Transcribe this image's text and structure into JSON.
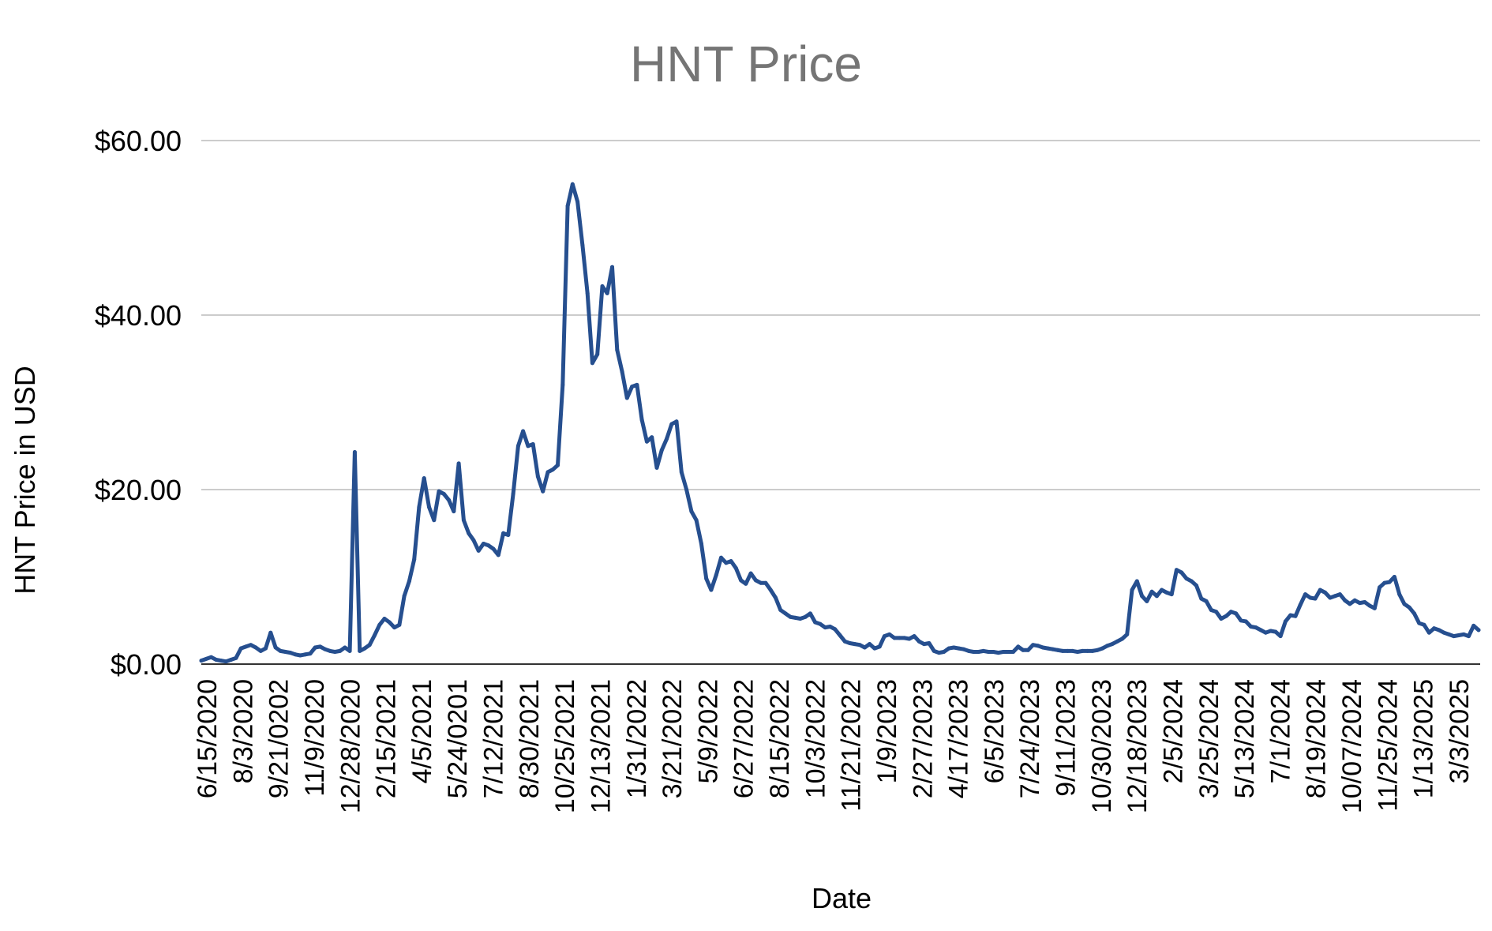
{
  "chart_data": {
    "type": "line",
    "title": "HNT Price",
    "xlabel": "Date",
    "ylabel": "HNT Price in USD",
    "ylim": [
      0,
      60
    ],
    "y_ticks": [
      {
        "value": 0,
        "label": "$0.00"
      },
      {
        "value": 20,
        "label": "$20.00"
      },
      {
        "value": 40,
        "label": "$40.00"
      },
      {
        "value": 60,
        "label": "$60.00"
      }
    ],
    "x_tick_labels": [
      "6/15/2020",
      "8/3/2020",
      "9/21/0202",
      "11/9/2020",
      "12/28/2020",
      "2/15/2021",
      "4/5/2021",
      "5/24/0201",
      "7/12/2021",
      "8/30/2021",
      "10/25/2021",
      "12/13/2021",
      "1/31/2022",
      "3/21/2022",
      "5/9/2022",
      "6/27/2022",
      "8/15/2022",
      "10/3/2022",
      "11/21/2022",
      "1/9/2023",
      "2/27/2023",
      "4/17/2023",
      "6/5/2023",
      "7/24/2023",
      "9/11/2023",
      "10/30/2023",
      "12/18/2023",
      "2/5/2024",
      "3/25/2024",
      "5/13/2024",
      "7/1/2024",
      "8/19/2024",
      "10/07/2024",
      "11/25/2024",
      "1/13/2025",
      "3/3/2025"
    ],
    "grid": true,
    "legend": "none",
    "colors": {
      "series": "#264f8f",
      "title": "#757575",
      "grid": "#cccccc"
    },
    "series": [
      {
        "values": [
          0.4,
          0.6,
          0.8,
          0.5,
          0.4,
          0.3,
          0.5,
          0.7,
          1.8,
          2.0,
          2.2,
          1.9,
          1.5,
          1.8,
          3.6,
          1.9,
          1.5,
          1.4,
          1.3,
          1.1,
          1.0,
          1.1,
          1.2,
          1.9,
          2.0,
          1.7,
          1.5,
          1.4,
          1.5,
          1.9,
          1.5,
          24.3,
          1.5,
          1.8,
          2.2,
          3.3,
          4.5,
          5.2,
          4.8,
          4.2,
          4.5,
          7.8,
          9.5,
          12.0,
          18.0,
          21.3,
          18.0,
          16.5,
          19.8,
          19.5,
          18.8,
          17.5,
          23.0,
          16.5,
          15.0,
          14.2,
          13.0,
          13.8,
          13.6,
          13.2,
          12.5,
          15.0,
          14.8,
          19.5,
          25.0,
          26.7,
          25.0,
          25.2,
          21.5,
          19.8,
          22.0,
          22.3,
          22.8,
          32.0,
          52.5,
          55.0,
          53.0,
          48.0,
          42.5,
          34.5,
          35.5,
          43.3,
          42.5,
          45.5,
          36.0,
          33.5,
          30.5,
          31.8,
          32.0,
          28.0,
          25.5,
          26.0,
          22.5,
          24.5,
          25.8,
          27.5,
          27.8,
          22.0,
          20.0,
          17.5,
          16.5,
          13.8,
          9.8,
          8.5,
          10.2,
          12.2,
          11.6,
          11.8,
          11.0,
          9.6,
          9.2,
          10.4,
          9.6,
          9.3,
          9.3,
          8.5,
          7.6,
          6.2,
          5.8,
          5.4,
          5.3,
          5.2,
          5.4,
          5.8,
          4.8,
          4.6,
          4.2,
          4.3,
          4.0,
          3.3,
          2.6,
          2.4,
          2.3,
          2.2,
          1.9,
          2.3,
          1.8,
          2.0,
          3.2,
          3.4,
          3.0,
          3.0,
          3.0,
          2.9,
          3.2,
          2.6,
          2.3,
          2.4,
          1.5,
          1.3,
          1.4,
          1.8,
          1.9,
          1.8,
          1.7,
          1.5,
          1.4,
          1.4,
          1.5,
          1.4,
          1.4,
          1.3,
          1.4,
          1.4,
          1.4,
          2.0,
          1.6,
          1.6,
          2.2,
          2.1,
          1.9,
          1.8,
          1.7,
          1.6,
          1.5,
          1.5,
          1.5,
          1.4,
          1.5,
          1.5,
          1.5,
          1.6,
          1.8,
          2.1,
          2.3,
          2.6,
          2.9,
          3.4,
          8.5,
          9.5,
          7.8,
          7.2,
          8.3,
          7.8,
          8.5,
          8.2,
          8.0,
          10.8,
          10.5,
          9.8,
          9.5,
          9.0,
          7.5,
          7.2,
          6.2,
          6.0,
          5.2,
          5.5,
          6.0,
          5.8,
          5.0,
          4.9,
          4.3,
          4.2,
          3.9,
          3.6,
          3.8,
          3.7,
          3.2,
          4.9,
          5.6,
          5.5,
          6.8,
          8.0,
          7.6,
          7.5,
          8.5,
          8.2,
          7.6,
          7.8,
          8.0,
          7.3,
          6.9,
          7.3,
          7.0,
          7.1,
          6.7,
          6.4,
          8.8,
          9.3,
          9.4,
          10.0,
          8.0,
          6.9,
          6.5,
          5.8,
          4.7,
          4.5,
          3.6,
          4.1,
          3.9,
          3.6,
          3.4,
          3.2,
          3.3,
          3.4,
          3.2,
          4.4,
          3.9
        ]
      }
    ]
  }
}
